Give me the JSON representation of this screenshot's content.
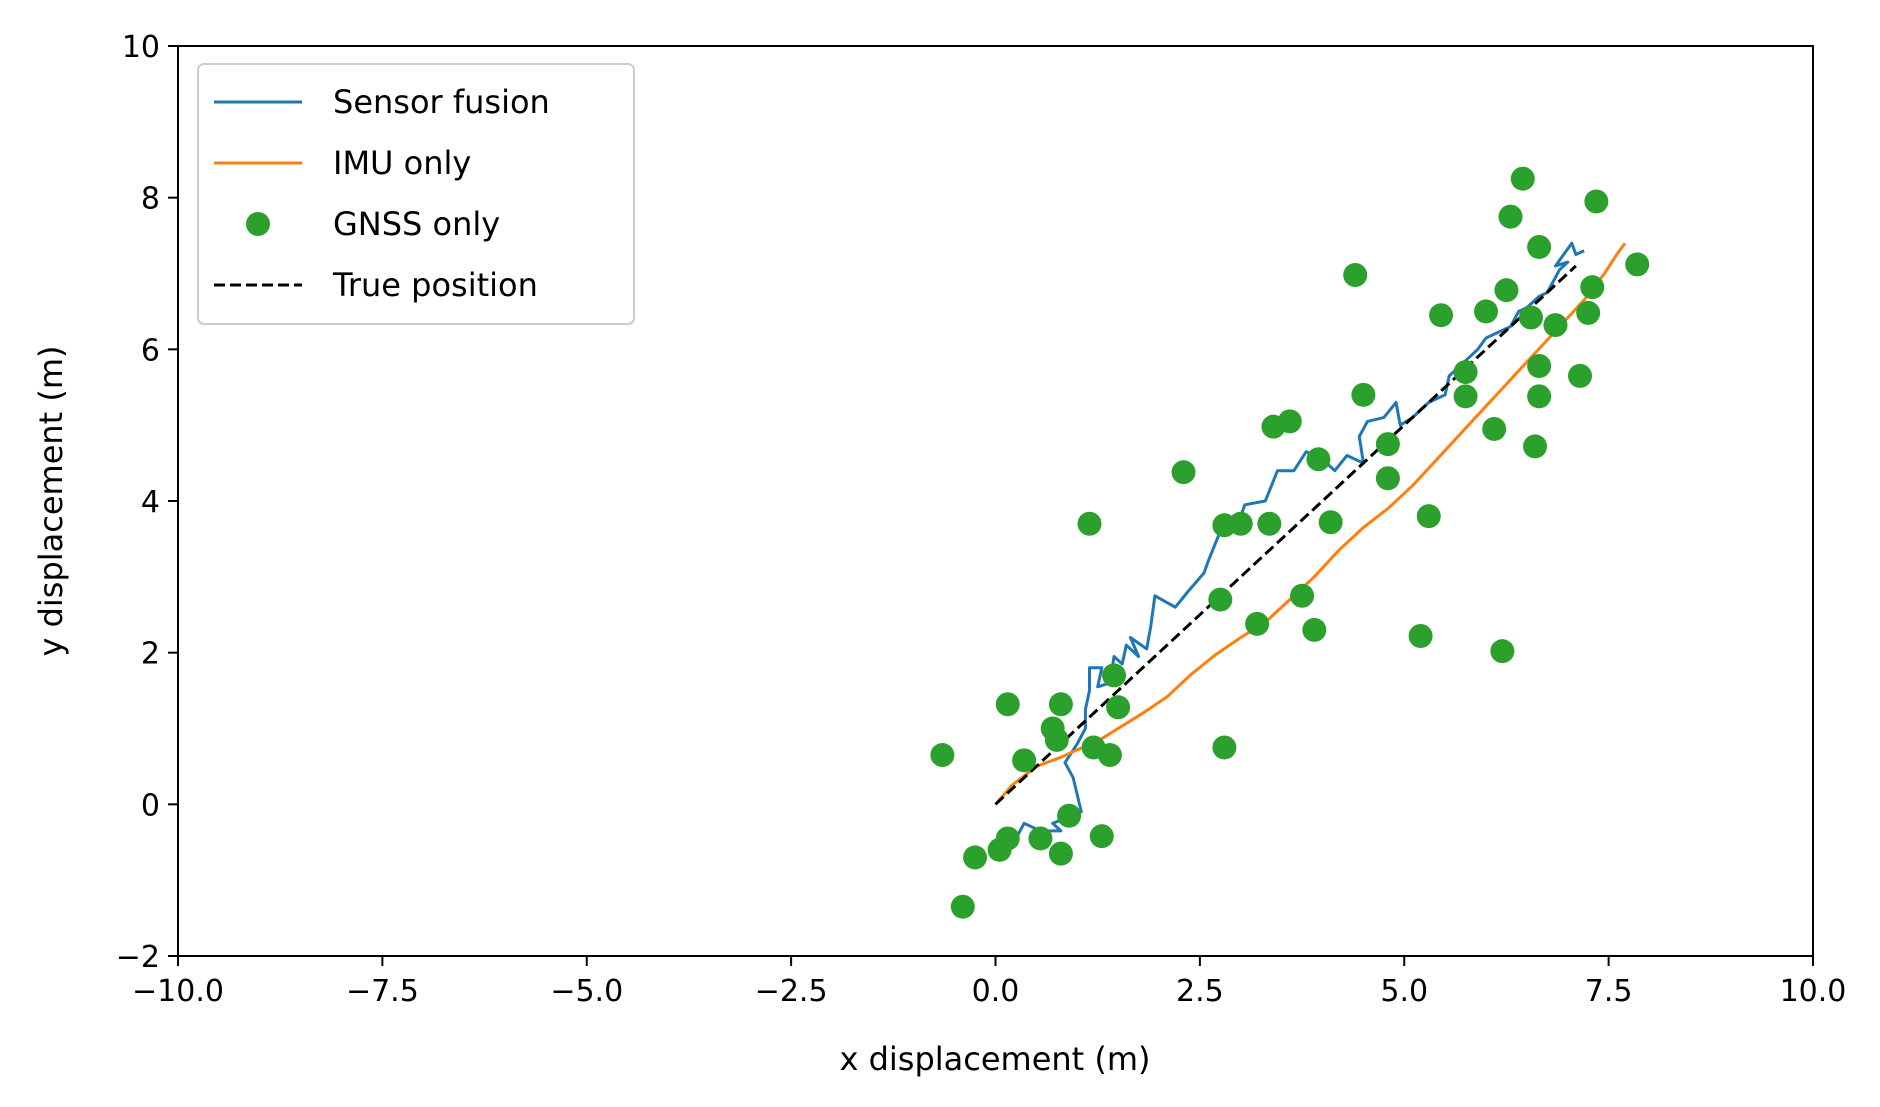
{
  "chart_data": {
    "type": "line",
    "title": "",
    "xlabel": "x displacement (m)",
    "ylabel": "y displacement (m)",
    "xlim": [
      -10,
      10
    ],
    "ylim": [
      -2,
      10
    ],
    "xticks": [
      -10,
      -7.5,
      -5,
      -2.5,
      0,
      2.5,
      5,
      7.5,
      10
    ],
    "xtick_labels": [
      "−10.0",
      "−7.5",
      "−5.0",
      "−2.5",
      "0.0",
      "2.5",
      "5.0",
      "7.5",
      "10.0"
    ],
    "yticks": [
      -2,
      0,
      2,
      4,
      6,
      8,
      10
    ],
    "ytick_labels": [
      "−2",
      "0",
      "2",
      "4",
      "6",
      "8",
      "10"
    ],
    "grid": false,
    "legend_position": "top-left",
    "colors": {
      "sensor_fusion": "#1f77b4",
      "imu_only": "#ff7f0e",
      "gnss_only": "#2ca02c",
      "true_position": "#000000"
    },
    "series": [
      {
        "name": "Sensor fusion",
        "style": "line",
        "points": [
          [
            0.2,
            -0.55
          ],
          [
            0.35,
            -0.25
          ],
          [
            0.55,
            -0.35
          ],
          [
            0.8,
            -0.35
          ],
          [
            0.7,
            -0.25
          ],
          [
            1.05,
            -0.1
          ],
          [
            0.95,
            0.35
          ],
          [
            0.85,
            0.55
          ],
          [
            1.0,
            0.8
          ],
          [
            1.1,
            1.0
          ],
          [
            1.1,
            1.25
          ],
          [
            1.15,
            1.5
          ],
          [
            1.15,
            1.8
          ],
          [
            1.3,
            1.8
          ],
          [
            1.25,
            1.55
          ],
          [
            1.4,
            1.6
          ],
          [
            1.45,
            1.95
          ],
          [
            1.55,
            1.85
          ],
          [
            1.6,
            2.1
          ],
          [
            1.75,
            1.95
          ],
          [
            1.65,
            2.2
          ],
          [
            1.85,
            2.05
          ],
          [
            1.9,
            2.35
          ],
          [
            1.95,
            2.75
          ],
          [
            2.2,
            2.6
          ],
          [
            2.35,
            2.8
          ],
          [
            2.55,
            3.05
          ],
          [
            2.6,
            3.2
          ],
          [
            2.75,
            3.6
          ],
          [
            2.95,
            3.65
          ],
          [
            3.05,
            3.95
          ],
          [
            3.3,
            4.0
          ],
          [
            3.45,
            4.4
          ],
          [
            3.65,
            4.4
          ],
          [
            3.8,
            4.65
          ],
          [
            4.0,
            4.55
          ],
          [
            4.15,
            4.4
          ],
          [
            4.3,
            4.6
          ],
          [
            4.5,
            4.5
          ],
          [
            4.45,
            4.85
          ],
          [
            4.55,
            5.05
          ],
          [
            4.75,
            5.1
          ],
          [
            4.9,
            5.3
          ],
          [
            4.95,
            5.0
          ],
          [
            5.1,
            5.1
          ],
          [
            5.3,
            5.3
          ],
          [
            5.5,
            5.4
          ],
          [
            5.55,
            5.65
          ],
          [
            5.75,
            5.85
          ],
          [
            5.9,
            6.0
          ],
          [
            6.0,
            6.15
          ],
          [
            6.2,
            6.25
          ],
          [
            6.3,
            6.3
          ],
          [
            6.4,
            6.5
          ],
          [
            6.5,
            6.55
          ],
          [
            6.65,
            6.7
          ],
          [
            6.75,
            6.75
          ],
          [
            6.9,
            7.05
          ],
          [
            7.0,
            7.15
          ],
          [
            6.85,
            7.1
          ],
          [
            7.05,
            7.4
          ],
          [
            7.1,
            7.25
          ],
          [
            7.2,
            7.3
          ]
        ]
      },
      {
        "name": "IMU only",
        "style": "line",
        "points": [
          [
            0.0,
            0.0
          ],
          [
            0.2,
            0.25
          ],
          [
            0.5,
            0.5
          ],
          [
            0.8,
            0.62
          ],
          [
            1.0,
            0.72
          ],
          [
            1.2,
            0.8
          ],
          [
            1.5,
            1.0
          ],
          [
            1.8,
            1.2
          ],
          [
            2.1,
            1.42
          ],
          [
            2.4,
            1.72
          ],
          [
            2.7,
            1.98
          ],
          [
            3.0,
            2.2
          ],
          [
            3.3,
            2.4
          ],
          [
            3.6,
            2.7
          ],
          [
            3.9,
            3.0
          ],
          [
            4.2,
            3.35
          ],
          [
            4.5,
            3.65
          ],
          [
            4.8,
            3.9
          ],
          [
            5.1,
            4.2
          ],
          [
            5.4,
            4.55
          ],
          [
            5.7,
            4.9
          ],
          [
            6.0,
            5.25
          ],
          [
            6.3,
            5.6
          ],
          [
            6.6,
            5.95
          ],
          [
            6.9,
            6.3
          ],
          [
            7.2,
            6.65
          ],
          [
            7.45,
            7.0
          ],
          [
            7.6,
            7.25
          ],
          [
            7.7,
            7.4
          ]
        ]
      },
      {
        "name": "GNSS only",
        "style": "markers",
        "points": [
          [
            6.45,
            8.25
          ],
          [
            6.3,
            7.75
          ],
          [
            7.35,
            7.95
          ],
          [
            6.65,
            7.35
          ],
          [
            7.85,
            7.12
          ],
          [
            4.4,
            6.98
          ],
          [
            6.25,
            6.78
          ],
          [
            7.3,
            6.82
          ],
          [
            5.45,
            6.45
          ],
          [
            6.0,
            6.5
          ],
          [
            6.55,
            6.42
          ],
          [
            6.85,
            6.32
          ],
          [
            7.25,
            6.48
          ],
          [
            6.65,
            5.78
          ],
          [
            5.75,
            5.7
          ],
          [
            7.15,
            5.65
          ],
          [
            4.5,
            5.4
          ],
          [
            5.75,
            5.38
          ],
          [
            6.65,
            5.38
          ],
          [
            3.4,
            4.98
          ],
          [
            3.6,
            5.05
          ],
          [
            6.1,
            4.95
          ],
          [
            4.8,
            4.75
          ],
          [
            6.6,
            4.72
          ],
          [
            3.95,
            4.55
          ],
          [
            4.8,
            4.3
          ],
          [
            2.3,
            4.38
          ],
          [
            1.15,
            3.7
          ],
          [
            2.8,
            3.68
          ],
          [
            3.0,
            3.7
          ],
          [
            3.35,
            3.7
          ],
          [
            4.1,
            3.72
          ],
          [
            5.3,
            3.8
          ],
          [
            3.75,
            2.75
          ],
          [
            2.75,
            2.7
          ],
          [
            3.2,
            2.38
          ],
          [
            3.9,
            2.3
          ],
          [
            5.2,
            2.22
          ],
          [
            6.2,
            2.02
          ],
          [
            1.45,
            1.7
          ],
          [
            0.15,
            1.32
          ],
          [
            0.8,
            1.32
          ],
          [
            1.5,
            1.28
          ],
          [
            0.7,
            1.0
          ],
          [
            0.75,
            0.85
          ],
          [
            1.2,
            0.75
          ],
          [
            2.8,
            0.75
          ],
          [
            -0.65,
            0.65
          ],
          [
            1.4,
            0.65
          ],
          [
            0.35,
            0.58
          ],
          [
            0.9,
            -0.15
          ],
          [
            0.15,
            -0.45
          ],
          [
            0.55,
            -0.45
          ],
          [
            1.3,
            -0.42
          ],
          [
            0.05,
            -0.6
          ],
          [
            0.8,
            -0.65
          ],
          [
            -0.25,
            -0.7
          ],
          [
            -0.4,
            -1.35
          ]
        ]
      },
      {
        "name": "True position",
        "style": "dashed",
        "points": [
          [
            0.0,
            0.0
          ],
          [
            7.1,
            7.1
          ]
        ]
      }
    ]
  }
}
